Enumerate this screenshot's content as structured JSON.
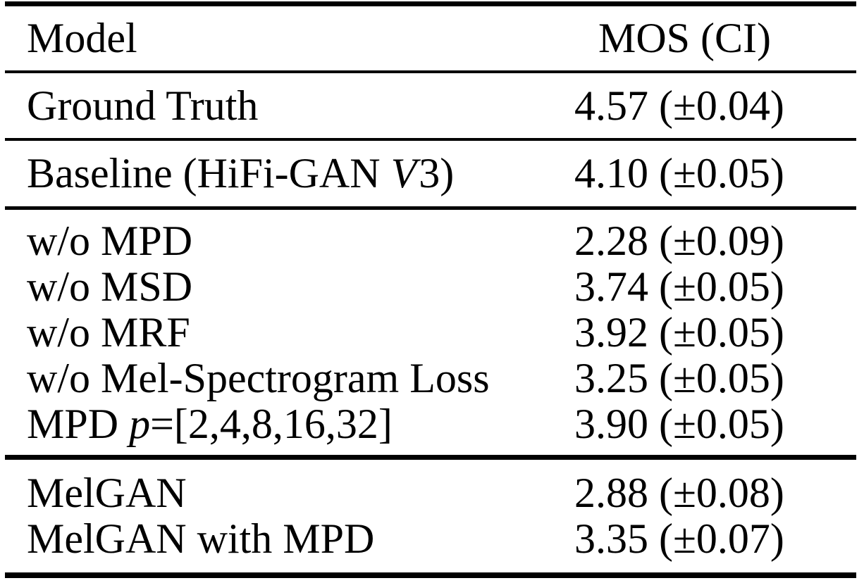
{
  "page": {
    "background_color": "#ffffff",
    "text_color": "#000000"
  },
  "table": {
    "header": {
      "model": "Model",
      "mos": "MOS (CI)"
    },
    "sections": [
      {
        "rows": [
          {
            "model": "Ground Truth",
            "mos": "4.57 (±0.04)"
          }
        ]
      },
      {
        "rows": [
          {
            "model_pre": "Baseline (HiFi-GAN ",
            "model_italic": "V",
            "model_post": "3)",
            "mos": "4.10 (±0.05)"
          }
        ]
      },
      {
        "rows": [
          {
            "model": "w/o MPD",
            "mos": "2.28 (±0.09)"
          },
          {
            "model": "w/o MSD",
            "mos": "3.74 (±0.05)"
          },
          {
            "model": "w/o MRF",
            "mos": "3.92 (±0.05)"
          },
          {
            "model": "w/o Mel-Spectrogram Loss",
            "mos": "3.25 (±0.05)"
          },
          {
            "model_pre": "MPD ",
            "model_italic": "p",
            "model_post": "=[2,4,8,16,32]",
            "mos": "3.90 (±0.05)"
          }
        ]
      },
      {
        "rows": [
          {
            "model": "MelGAN",
            "mos": "2.88 (±0.08)"
          },
          {
            "model": "MelGAN with MPD",
            "mos": "3.35 (±0.07)"
          }
        ]
      }
    ]
  },
  "chart_data": {
    "type": "table",
    "columns": [
      "Model",
      "MOS (CI)"
    ],
    "rows": [
      [
        "Ground Truth",
        "4.57 (±0.04)"
      ],
      [
        "Baseline (HiFi-GAN V3)",
        "4.10 (±0.05)"
      ],
      [
        "w/o MPD",
        "2.28 (±0.09)"
      ],
      [
        "w/o MSD",
        "3.74 (±0.05)"
      ],
      [
        "w/o MRF",
        "3.92 (±0.05)"
      ],
      [
        "w/o Mel-Spectrogram Loss",
        "3.25 (±0.05)"
      ],
      [
        "MPD p=[2,4,8,16,32]",
        "3.90 (±0.05)"
      ],
      [
        "MelGAN",
        "2.88 (±0.08)"
      ],
      [
        "MelGAN with MPD",
        "3.35 (±0.07)"
      ]
    ],
    "mos_values": [
      4.57,
      4.1,
      2.28,
      3.74,
      3.92,
      3.25,
      3.9,
      2.88,
      3.35
    ],
    "ci_values": [
      0.04,
      0.05,
      0.09,
      0.05,
      0.05,
      0.05,
      0.05,
      0.08,
      0.07
    ]
  }
}
